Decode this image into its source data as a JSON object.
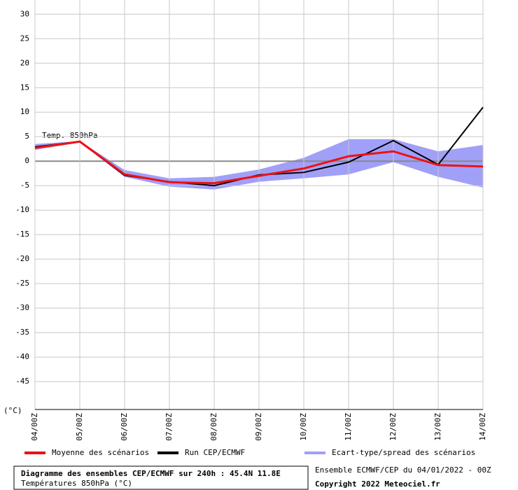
{
  "chart_data": {
    "type": "line",
    "categories": [
      "04/00Z",
      "05/00Z",
      "06/00Z",
      "07/00Z",
      "08/00Z",
      "09/00Z",
      "10/00Z",
      "11/00Z",
      "12/00Z",
      "13/00Z",
      "14/00Z"
    ],
    "series": [
      {
        "name": "Moyenne des scénarios",
        "color": "#ee1111",
        "values": [
          2.7,
          4,
          -2.7,
          -4.3,
          -4.5,
          -3,
          -1.5,
          1,
          2,
          -0.8,
          -1.1
        ]
      },
      {
        "name": "Run CEP/ECMWF",
        "color": "#000000",
        "values": [
          2.9,
          4,
          -2.9,
          -4.2,
          -5,
          -2.8,
          -2.3,
          -0.2,
          4.2,
          -0.7,
          11
        ]
      }
    ],
    "band": {
      "name": "Ecart-type/spread des scénarios",
      "color": "#a0a0f8",
      "upper": [
        3.5,
        4.1,
        -1.8,
        -3.5,
        -3.2,
        -1.7,
        0.7,
        4.5,
        4.5,
        2,
        3.3
      ],
      "lower": [
        2.3,
        3.8,
        -3.2,
        -5.2,
        -5.8,
        -4.2,
        -3.5,
        -2.7,
        -0.2,
        -3.2,
        -5.4
      ]
    },
    "ylim": [
      -50.7,
      32.9
    ],
    "yticks": [
      30,
      25,
      20,
      15,
      10,
      5,
      0,
      -5,
      -10,
      -15,
      -20,
      -25,
      -30,
      -35,
      -40,
      -45
    ],
    "y_unit_label": "(°C)",
    "annotation": "Temp. 850hPa",
    "grid": true,
    "title": "Diagramme des ensembles CEP/ECMWF sur 240h : 45.4N 11.8E",
    "subtitle": "Températures 850hPa (°C)",
    "run_info": "Ensemble ECMWF/CEP du 04/01/2022 - 00Z",
    "copyright": "Copyright 2022 Meteociel.fr"
  }
}
